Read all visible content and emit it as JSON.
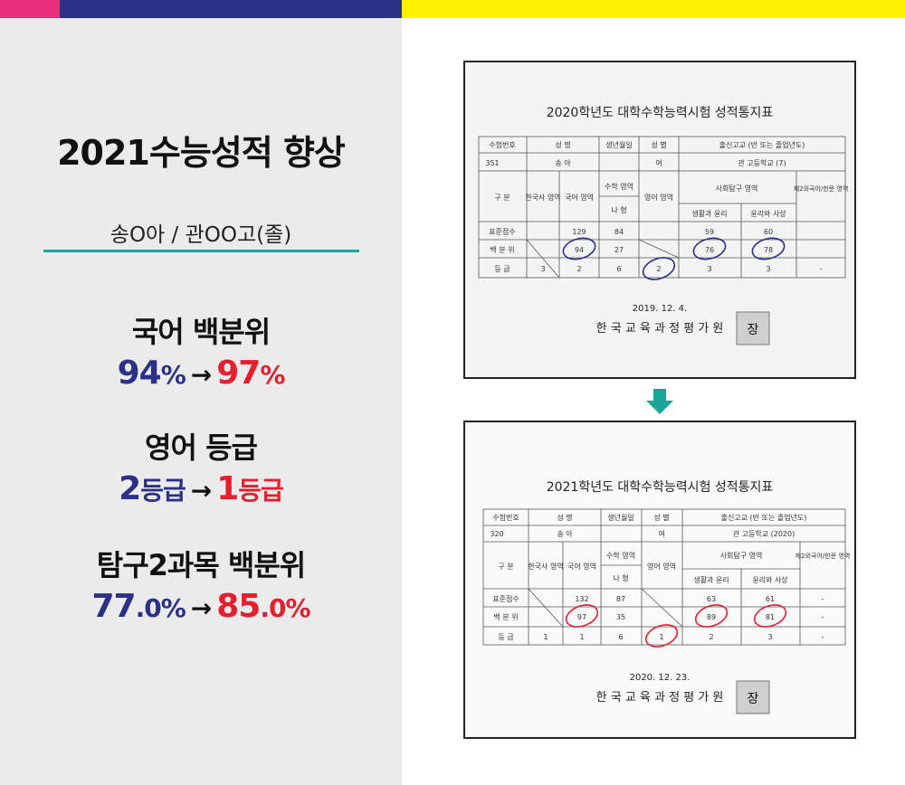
{
  "header": {
    "title": "2021수능성적 향상",
    "student": "송O아 / 관OO고(졸)"
  },
  "stats": [
    {
      "label": "국어 백분위",
      "before": "94",
      "before_unit": "%",
      "after": "97",
      "after_unit": "%"
    },
    {
      "label": "영어 등급",
      "before": "2",
      "before_unit": "등급",
      "after": "1",
      "after_unit": "등급"
    },
    {
      "label": "탐구2과목 백분위",
      "before": "77",
      "before_unit": ".0%",
      "after": "85",
      "after_unit": ".0%"
    }
  ],
  "arrow_symbol": "→",
  "colors": {
    "before": "#2a3187",
    "after": "#e5202e",
    "divider": "#1aa59b",
    "down_arrow": "#1aa59b"
  },
  "report_before": {
    "title": "2020학년도 대학수학능력시험 성적통지표",
    "header_row": [
      "수험번호",
      "성 명",
      "생년월일",
      "성 별",
      "출신고교 (반 또는 졸업년도)"
    ],
    "info_row": [
      "351",
      "송 아",
      "",
      "여",
      "관 고등학교 (7)"
    ],
    "subject_row": [
      "구 분",
      "한국사 영역",
      "국어 영역",
      "수학 영역",
      "영어 영역",
      "사회탐구 영역",
      "제2외국어/한문 영역"
    ],
    "math_type": "나 형",
    "sub_subjects": [
      "생활과 윤리",
      "윤리와 사상"
    ],
    "std_label": "표준점수",
    "std_scores": [
      "",
      "129",
      "84",
      "",
      "59",
      "60",
      ""
    ],
    "pct_label": "백 분 위",
    "pct_scores": [
      "",
      "94",
      "27",
      "",
      "76",
      "78",
      ""
    ],
    "grade_label": "등 급",
    "grades": [
      "3",
      "2",
      "6",
      "2",
      "3",
      "3",
      "-"
    ],
    "date": "2019. 12. 4.",
    "issuer": "한 국 교 육 과 정 평 가 원",
    "seal": "장"
  },
  "report_after": {
    "title": "2021학년도 대학수학능력시험 성적통지표",
    "header_row": [
      "수험번호",
      "성 명",
      "생년월일",
      "성 별",
      "출신고교 (반 또는 졸업년도)"
    ],
    "info_row": [
      "320",
      "송 아",
      "",
      "여",
      "관 고등학교 (2020)"
    ],
    "subject_row": [
      "구 분",
      "한국사 영역",
      "국어 영역",
      "수학 영역",
      "영어 영역",
      "사회탐구 영역",
      "제2외국어/한문 영역"
    ],
    "math_type": "나 형",
    "sub_subjects": [
      "생활과 윤리",
      "윤리와 사상"
    ],
    "std_label": "표준점수",
    "std_scores": [
      "",
      "132",
      "87",
      "",
      "63",
      "61",
      "-"
    ],
    "pct_label": "백 분 위",
    "pct_scores": [
      "",
      "97",
      "35",
      "",
      "89",
      "81",
      "-"
    ],
    "grade_label": "등 급",
    "grades": [
      "1",
      "1",
      "6",
      "1",
      "2",
      "3",
      "-"
    ],
    "date": "2020. 12. 23.",
    "issuer": "한 국 교 육 과 정 평 가 원",
    "seal": "장"
  }
}
